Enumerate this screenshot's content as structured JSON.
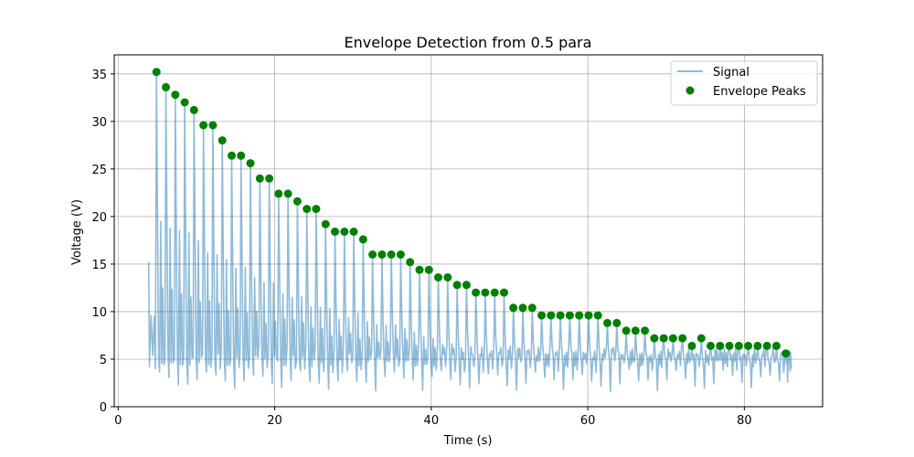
{
  "chart_data": {
    "type": "line",
    "title": "Envelope Detection from 0.5 para",
    "xlabel": "Time (s)",
    "ylabel": "Voltage (V)",
    "xlim": [
      -0.5,
      90
    ],
    "ylim": [
      0,
      37
    ],
    "xticks": [
      0,
      20,
      40,
      60,
      80
    ],
    "yticks": [
      0,
      5,
      10,
      15,
      20,
      25,
      30,
      35
    ],
    "grid": true,
    "legend_position": "top-right",
    "colors": {
      "signal": "#1f77b4",
      "peaks": "#008000"
    },
    "series": [
      {
        "name": "Signal",
        "style": "line",
        "start_x": 3.9,
        "start_y": 15.2,
        "end_x": 86.0,
        "end_y": 4.0,
        "trough_values": [
          3.2,
          2.6,
          2.1,
          1.6,
          2.4
        ]
      },
      {
        "name": "Envelope Peaks",
        "style": "scatter",
        "x": [
          4.9,
          6.1,
          7.3,
          8.5,
          9.7,
          10.9,
          12.1,
          13.3,
          14.5,
          15.7,
          16.9,
          18.1,
          19.3,
          20.5,
          21.7,
          22.9,
          24.1,
          25.3,
          26.5,
          27.7,
          28.9,
          30.1,
          31.3,
          32.5,
          33.7,
          34.9,
          36.1,
          37.3,
          38.5,
          39.7,
          40.9,
          42.1,
          43.3,
          44.5,
          45.7,
          46.9,
          48.1,
          49.3,
          50.5,
          51.7,
          52.9,
          54.1,
          55.3,
          56.5,
          57.7,
          58.9,
          60.1,
          61.3,
          62.5,
          63.7,
          64.9,
          66.1,
          67.3,
          68.5,
          69.7,
          70.9,
          72.1,
          73.3,
          74.5,
          75.7,
          76.9,
          78.1,
          79.3,
          80.5,
          81.7,
          82.9,
          84.1,
          85.3
        ],
        "y": [
          35.2,
          33.6,
          32.8,
          32.0,
          31.2,
          29.6,
          29.6,
          28.0,
          26.4,
          26.4,
          25.6,
          24.0,
          24.0,
          22.4,
          22.4,
          21.6,
          20.8,
          20.8,
          19.2,
          18.4,
          18.4,
          18.4,
          17.6,
          16.0,
          16.0,
          16.0,
          16.0,
          15.2,
          14.4,
          14.4,
          13.6,
          13.6,
          12.8,
          12.8,
          12.0,
          12.0,
          12.0,
          12.0,
          10.4,
          10.4,
          10.4,
          9.6,
          9.6,
          9.6,
          9.6,
          9.6,
          9.6,
          9.6,
          8.8,
          8.8,
          8.0,
          8.0,
          8.0,
          7.2,
          7.2,
          7.2,
          7.2,
          6.4,
          7.2,
          6.4,
          6.4,
          6.4,
          6.4,
          6.4,
          6.4,
          6.4,
          6.4,
          5.6
        ]
      }
    ]
  }
}
